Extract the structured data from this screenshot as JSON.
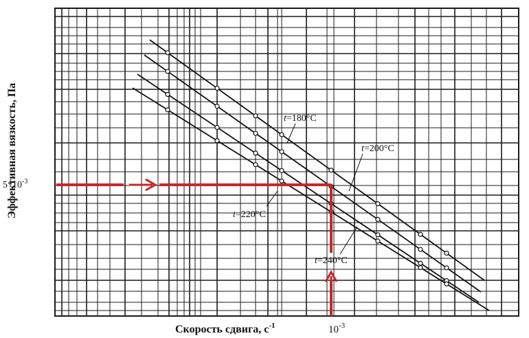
{
  "chart_data": {
    "type": "line",
    "xlabel": "Скорость сдвига, с",
    "xlabel_exp": "-1",
    "ylabel": "Эффективная вязкость, Па",
    "x_scale": "log",
    "y_scale": "log",
    "grid": true,
    "marked_point": {
      "x_label": "10",
      "x_label_exp": "-3",
      "y_label": "5*10",
      "y_label_exp": "-3"
    },
    "series": [
      {
        "name": "t=180°C",
        "label_prefix": "t",
        "label_value": "=180°C"
      },
      {
        "name": "t=200°C",
        "label_prefix": "t",
        "label_value": "=200°C"
      },
      {
        "name": "t=220°C",
        "label_prefix": "t",
        "label_value": "=220°C"
      },
      {
        "name": "t=240°C",
        "label_prefix": "t",
        "label_value": "=240°C"
      }
    ]
  },
  "colors": {
    "grid": "#1a1a1a",
    "line": "#111111",
    "marker": "#c62828"
  }
}
